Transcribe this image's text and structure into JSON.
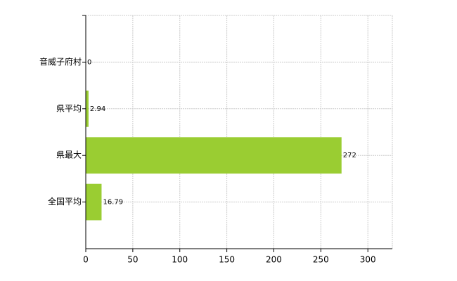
{
  "chart_data": {
    "type": "bar",
    "orientation": "horizontal",
    "categories": [
      "音威子府村",
      "県平均",
      "県最大",
      "全国平均"
    ],
    "values": [
      0,
      2.94,
      272,
      16.79
    ],
    "color": "#9acd32",
    "xlim": [
      0,
      326
    ],
    "xticks": [
      0,
      50,
      100,
      150,
      200,
      250,
      300
    ],
    "grid": true
  }
}
